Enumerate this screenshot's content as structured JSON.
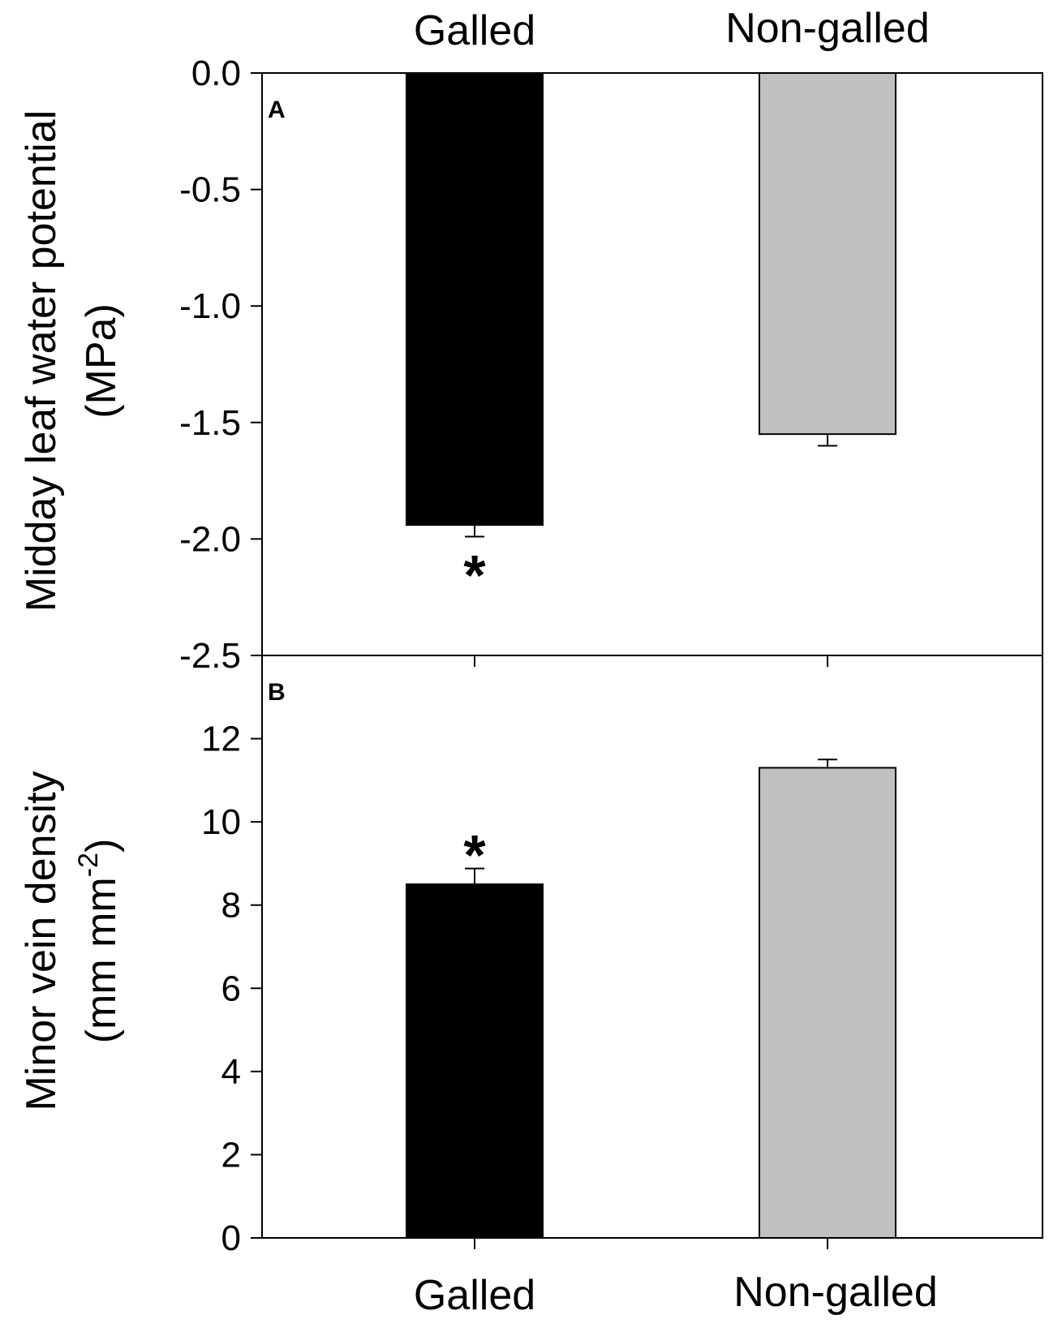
{
  "chart_data": [
    {
      "panel_label": "A",
      "type": "bar",
      "categories": [
        "Galled",
        "Non-galled"
      ],
      "values": [
        -1.94,
        -1.55
      ],
      "errors": [
        0.05,
        0.05
      ],
      "significance": [
        "*",
        ""
      ],
      "colors": [
        "#000000",
        "#c0c0c0"
      ],
      "ylabel_line1": "Midday leaf water potential",
      "ylabel_line2": "(MPa)",
      "ylim": [
        -2.5,
        0.0
      ],
      "yticks": [
        0.0,
        -0.5,
        -1.0,
        -1.5,
        -2.0,
        -2.5
      ],
      "ytick_labels": [
        "0.0",
        "-0.5",
        "-1.0",
        "-1.5",
        "-2.0",
        "-2.5"
      ],
      "category_labels_position": "top"
    },
    {
      "panel_label": "B",
      "type": "bar",
      "categories": [
        "Galled",
        "Non-galled"
      ],
      "values": [
        8.5,
        11.3
      ],
      "errors": [
        0.38,
        0.2
      ],
      "significance": [
        "*",
        ""
      ],
      "colors": [
        "#000000",
        "#c0c0c0"
      ],
      "ylabel_line1": "Minor vein density",
      "ylabel_line2_main": "(mm mm",
      "ylabel_line2_sup": "-2",
      "ylabel_line2_close": ")",
      "ylim": [
        0,
        14
      ],
      "yticks": [
        0,
        2,
        4,
        6,
        8,
        10,
        12
      ],
      "ytick_labels": [
        "0",
        "2",
        "4",
        "6",
        "8",
        "10",
        "12"
      ],
      "category_labels_position": "bottom"
    }
  ]
}
